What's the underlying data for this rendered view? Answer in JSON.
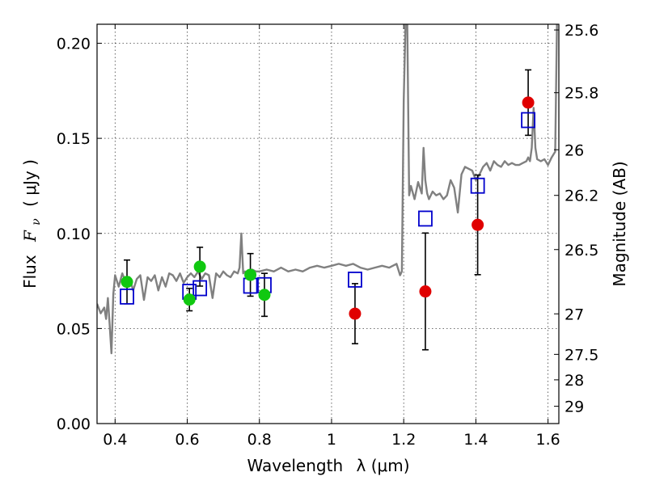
{
  "chart_data": {
    "type": "scatter",
    "title": "",
    "xlabel_text": "Wavelength",
    "xlabel_symbol": "λ (μm)",
    "ylabel_text": "Flux",
    "ylabel_symbol": "F",
    "ylabel_subscript": "ν",
    "ylabel_units": "( μJy )",
    "y2label": "Magnitude (AB)",
    "xlim": [
      0.35,
      1.63
    ],
    "ylim": [
      0.0,
      0.21
    ],
    "xticks": [
      {
        "value": 0.4,
        "label": "0.4"
      },
      {
        "value": 0.6,
        "label": "0.6"
      },
      {
        "value": 0.8,
        "label": "0.8"
      },
      {
        "value": 1.0,
        "label": "1"
      },
      {
        "value": 1.2,
        "label": "1.2"
      },
      {
        "value": 1.4,
        "label": "1.4"
      },
      {
        "value": 1.6,
        "label": "1.6"
      }
    ],
    "yticks": [
      {
        "value": 0.0,
        "label": "0.00"
      },
      {
        "value": 0.05,
        "label": "0.05"
      },
      {
        "value": 0.1,
        "label": "0.10"
      },
      {
        "value": 0.15,
        "label": "0.15"
      },
      {
        "value": 0.2,
        "label": "0.20"
      }
    ],
    "y2ticks": [
      {
        "flux": 0.207,
        "label": "25.6"
      },
      {
        "flux": 0.174,
        "label": "25.8"
      },
      {
        "flux": 0.144,
        "label": "26"
      },
      {
        "flux": 0.12,
        "label": "26.2"
      },
      {
        "flux": 0.0915,
        "label": "26.5"
      },
      {
        "flux": 0.0577,
        "label": "27"
      },
      {
        "flux": 0.0364,
        "label": "27.5"
      },
      {
        "flux": 0.023,
        "label": "28"
      },
      {
        "flux": 0.0091,
        "label": "29"
      }
    ],
    "grid": true,
    "colors": {
      "spectrum": "#808080",
      "detections": "#e00000",
      "other_points": "#10c810",
      "model": "#0000cc",
      "errorbar": "#000000"
    },
    "spectrum": {
      "x": [
        0.35,
        0.36,
        0.37,
        0.375,
        0.38,
        0.385,
        0.39,
        0.395,
        0.4,
        0.41,
        0.42,
        0.43,
        0.44,
        0.45,
        0.46,
        0.47,
        0.48,
        0.49,
        0.5,
        0.51,
        0.52,
        0.53,
        0.54,
        0.55,
        0.56,
        0.57,
        0.58,
        0.59,
        0.6,
        0.61,
        0.62,
        0.63,
        0.64,
        0.65,
        0.66,
        0.67,
        0.68,
        0.69,
        0.7,
        0.71,
        0.72,
        0.73,
        0.74,
        0.745,
        0.75,
        0.755,
        0.76,
        0.77,
        0.78,
        0.79,
        0.8,
        0.82,
        0.84,
        0.86,
        0.88,
        0.9,
        0.92,
        0.94,
        0.96,
        0.98,
        1.0,
        1.02,
        1.04,
        1.06,
        1.08,
        1.1,
        1.12,
        1.14,
        1.16,
        1.18,
        1.19,
        1.195,
        1.2,
        1.205,
        1.21,
        1.215,
        1.22,
        1.23,
        1.24,
        1.25,
        1.255,
        1.26,
        1.265,
        1.27,
        1.28,
        1.29,
        1.3,
        1.31,
        1.32,
        1.33,
        1.34,
        1.35,
        1.36,
        1.37,
        1.38,
        1.39,
        1.4,
        1.41,
        1.42,
        1.43,
        1.44,
        1.45,
        1.46,
        1.47,
        1.48,
        1.49,
        1.5,
        1.51,
        1.52,
        1.53,
        1.54,
        1.545,
        1.55,
        1.555,
        1.56,
        1.565,
        1.57,
        1.58,
        1.59,
        1.6,
        1.61,
        1.62,
        1.625,
        1.63
      ],
      "y": [
        0.063,
        0.058,
        0.061,
        0.055,
        0.066,
        0.052,
        0.037,
        0.068,
        0.078,
        0.072,
        0.079,
        0.074,
        0.077,
        0.07,
        0.076,
        0.078,
        0.065,
        0.077,
        0.075,
        0.078,
        0.07,
        0.077,
        0.072,
        0.079,
        0.078,
        0.075,
        0.079,
        0.074,
        0.077,
        0.079,
        0.077,
        0.08,
        0.076,
        0.079,
        0.078,
        0.066,
        0.079,
        0.077,
        0.08,
        0.078,
        0.077,
        0.08,
        0.079,
        0.082,
        0.1,
        0.079,
        0.08,
        0.078,
        0.081,
        0.08,
        0.08,
        0.081,
        0.08,
        0.082,
        0.08,
        0.081,
        0.08,
        0.082,
        0.083,
        0.082,
        0.083,
        0.084,
        0.083,
        0.084,
        0.082,
        0.081,
        0.082,
        0.083,
        0.082,
        0.084,
        0.078,
        0.08,
        0.17,
        0.21,
        0.21,
        0.12,
        0.125,
        0.118,
        0.127,
        0.121,
        0.145,
        0.128,
        0.121,
        0.118,
        0.122,
        0.12,
        0.121,
        0.118,
        0.12,
        0.128,
        0.124,
        0.111,
        0.131,
        0.135,
        0.134,
        0.133,
        0.128,
        0.131,
        0.135,
        0.137,
        0.133,
        0.138,
        0.136,
        0.135,
        0.138,
        0.136,
        0.137,
        0.136,
        0.136,
        0.137,
        0.138,
        0.14,
        0.138,
        0.145,
        0.166,
        0.145,
        0.139,
        0.138,
        0.139,
        0.136,
        0.14,
        0.143,
        0.214,
        0.214
      ]
    },
    "series": [
      {
        "marker": "circle-red",
        "points": [
          {
            "x": 1.065,
            "y": 0.0578,
            "err": 0.0158
          },
          {
            "x": 1.26,
            "y": 0.0695,
            "err": 0.0307
          },
          {
            "x": 1.405,
            "y": 0.1045,
            "err": 0.0262
          },
          {
            "x": 1.545,
            "y": 0.1688,
            "err": 0.0172
          }
        ]
      },
      {
        "marker": "circle-green",
        "points": [
          {
            "x": 0.433,
            "y": 0.0745,
            "err": 0.0115
          },
          {
            "x": 0.606,
            "y": 0.0652,
            "err": 0.0059
          },
          {
            "x": 0.635,
            "y": 0.0825,
            "err": 0.0102
          },
          {
            "x": 0.775,
            "y": 0.0782,
            "err": 0.0112
          },
          {
            "x": 0.814,
            "y": 0.0677,
            "err": 0.0113
          }
        ]
      },
      {
        "marker": "square-blue",
        "points": [
          {
            "x": 0.433,
            "y": 0.0668
          },
          {
            "x": 0.606,
            "y": 0.0693
          },
          {
            "x": 0.635,
            "y": 0.0712
          },
          {
            "x": 0.775,
            "y": 0.0725
          },
          {
            "x": 0.814,
            "y": 0.0728
          },
          {
            "x": 1.065,
            "y": 0.0757
          },
          {
            "x": 1.26,
            "y": 0.1078
          },
          {
            "x": 1.405,
            "y": 0.1251
          },
          {
            "x": 1.545,
            "y": 0.1596
          }
        ]
      }
    ]
  }
}
